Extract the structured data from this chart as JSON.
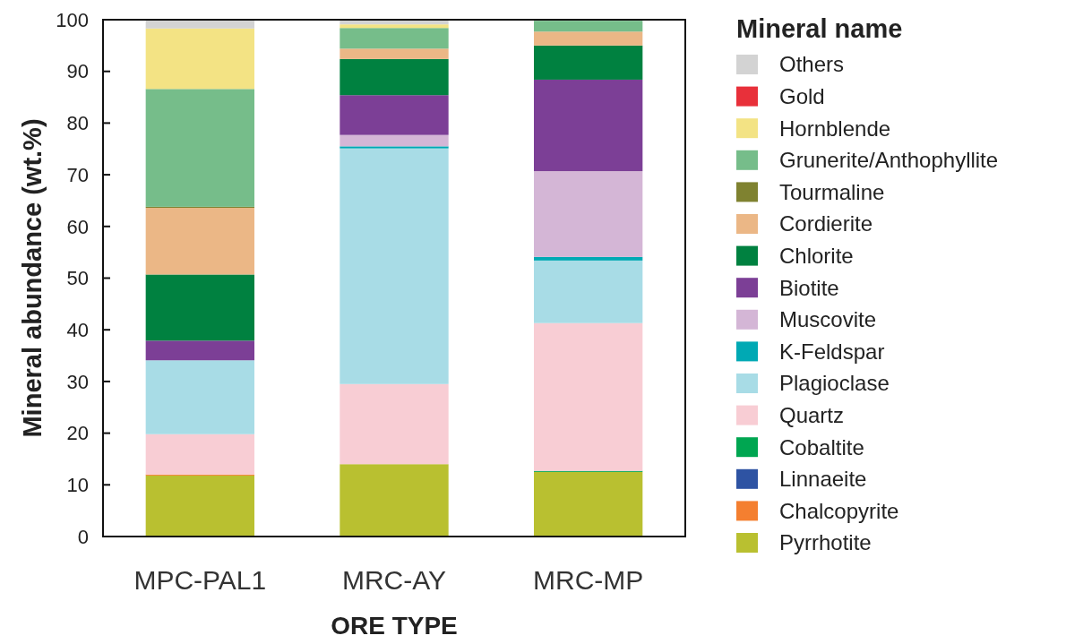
{
  "chart_data": {
    "type": "bar",
    "stacked": true,
    "xlabel": "ORE TYPE",
    "ylabel": "Mineral abundance (wt.%)",
    "legend_title": "Mineral name",
    "categories": [
      "MPC-PAL1",
      "MRC-AY",
      "MRC-MP"
    ],
    "ylim": [
      0,
      100
    ],
    "yticks": [
      0,
      10,
      20,
      30,
      40,
      50,
      60,
      70,
      80,
      90,
      100
    ],
    "legend": "right",
    "series": [
      {
        "name": "Pyrrhotite",
        "color": "#b9c030",
        "values": [
          11.8,
          14.0,
          12.5
        ]
      },
      {
        "name": "Chalcopyrite",
        "color": "#f47f30",
        "values": [
          0.2,
          null,
          null
        ]
      },
      {
        "name": "Linnaeite",
        "color": "#2e53a3",
        "values": [
          null,
          null,
          null
        ]
      },
      {
        "name": "Cobaltite",
        "color": "#00a651",
        "values": [
          null,
          null,
          0.2
        ]
      },
      {
        "name": "Quartz",
        "color": "#f8cdd4",
        "values": [
          7.8,
          15.5,
          28.6
        ]
      },
      {
        "name": "Plagioclase",
        "color": "#a8dce6",
        "values": [
          14.3,
          45.6,
          12.1
        ]
      },
      {
        "name": "K-Feldspar",
        "color": "#00a9b4",
        "values": [
          null,
          0.4,
          0.7
        ]
      },
      {
        "name": "Muscovite",
        "color": "#d4b6d6",
        "values": [
          null,
          2.2,
          16.6
        ]
      },
      {
        "name": "Biotite",
        "color": "#7c3f96",
        "values": [
          3.8,
          7.7,
          17.7
        ]
      },
      {
        "name": "Chlorite",
        "color": "#008140",
        "values": [
          12.8,
          7.0,
          6.6
        ]
      },
      {
        "name": "Cordierite",
        "color": "#ebb786",
        "values": [
          12.9,
          2.0,
          2.7
        ]
      },
      {
        "name": "Tourmaline",
        "color": "#7f8230",
        "values": [
          0.2,
          null,
          null
        ]
      },
      {
        "name": "Grunerite/Anthophyllite",
        "color": "#76bd8a",
        "values": [
          22.8,
          4.0,
          2.1
        ]
      },
      {
        "name": "Hornblende",
        "color": "#f3e384",
        "values": [
          11.7,
          0.7,
          null
        ]
      },
      {
        "name": "Gold",
        "color": "#e8303a",
        "values": [
          null,
          null,
          null
        ]
      },
      {
        "name": "Others",
        "color": "#d3d3d3",
        "values": [
          1.7,
          0.9,
          null
        ]
      }
    ]
  }
}
